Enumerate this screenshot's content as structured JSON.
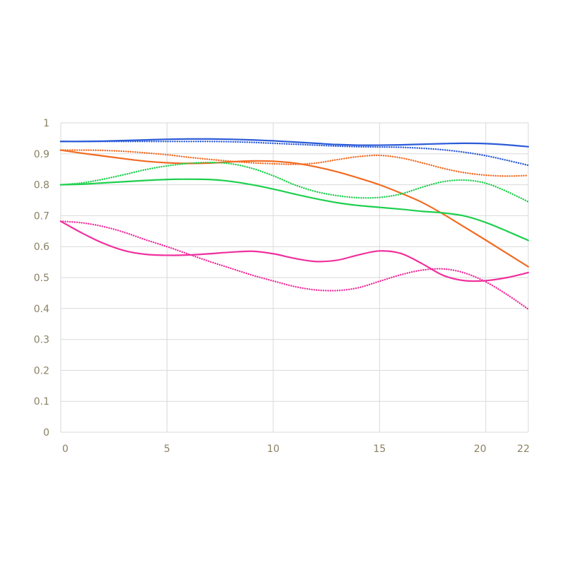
{
  "chart_data": {
    "type": "line",
    "title": "",
    "xlabel": "",
    "ylabel": "",
    "xlim": [
      0,
      22
    ],
    "ylim": [
      0,
      1
    ],
    "grid": true,
    "x_ticks": [
      0,
      5,
      10,
      15,
      20,
      22
    ],
    "x_tick_labels": [
      "0",
      "5",
      "10",
      "15",
      "20",
      "22"
    ],
    "y_ticks": [
      0,
      0.1,
      0.2,
      0.3,
      0.4,
      0.5,
      0.6,
      0.7,
      0.8,
      0.9,
      1
    ],
    "y_tick_labels": [
      "0",
      "0.1",
      "0.2",
      "0.3",
      "0.4",
      "0.5",
      "0.6",
      "0.7",
      "0.8",
      "0.9",
      "1"
    ],
    "colors": {
      "grid": "#d9d9d9",
      "tick_text": "#8a8163",
      "blue": "#2b5bd7",
      "orange": "#f26a21",
      "green": "#1fcf4e",
      "magenta": "#f0309e"
    },
    "series": [
      {
        "color": "#2b5bd7",
        "style": "solid",
        "x": [
          0,
          1,
          2,
          3,
          4,
          5,
          6,
          7,
          8,
          9,
          10,
          11,
          12,
          13,
          14,
          15,
          16,
          17,
          18,
          19,
          20,
          21,
          22
        ],
        "y": [
          0.94,
          0.94,
          0.941,
          0.943,
          0.945,
          0.947,
          0.948,
          0.948,
          0.947,
          0.945,
          0.942,
          0.938,
          0.934,
          0.93,
          0.928,
          0.928,
          0.929,
          0.931,
          0.933,
          0.934,
          0.933,
          0.929,
          0.923
        ]
      },
      {
        "color": "#2b5bd7",
        "style": "dotted",
        "x": [
          0,
          1,
          2,
          3,
          4,
          5,
          6,
          7,
          8,
          9,
          10,
          11,
          12,
          13,
          14,
          15,
          16,
          17,
          18,
          19,
          20,
          21,
          22
        ],
        "y": [
          0.94,
          0.94,
          0.94,
          0.94,
          0.94,
          0.94,
          0.94,
          0.94,
          0.939,
          0.937,
          0.934,
          0.931,
          0.928,
          0.925,
          0.923,
          0.922,
          0.921,
          0.918,
          0.913,
          0.905,
          0.894,
          0.879,
          0.863
        ]
      },
      {
        "color": "#f26a21",
        "style": "solid",
        "x": [
          0,
          1,
          2,
          3,
          4,
          5,
          6,
          7,
          8,
          9,
          10,
          11,
          12,
          13,
          14,
          15,
          16,
          17,
          18,
          19,
          20,
          21,
          22
        ],
        "y": [
          0.912,
          0.902,
          0.893,
          0.884,
          0.876,
          0.871,
          0.869,
          0.87,
          0.874,
          0.877,
          0.876,
          0.87,
          0.858,
          0.842,
          0.822,
          0.8,
          0.773,
          0.743,
          0.705,
          0.663,
          0.621,
          0.578,
          0.535
        ]
      },
      {
        "color": "#f26a21",
        "style": "dotted",
        "x": [
          0,
          1,
          2,
          3,
          4,
          5,
          6,
          7,
          8,
          9,
          10,
          11,
          12,
          13,
          14,
          15,
          16,
          17,
          18,
          19,
          20,
          21,
          22
        ],
        "y": [
          0.912,
          0.912,
          0.911,
          0.908,
          0.903,
          0.897,
          0.889,
          0.882,
          0.876,
          0.871,
          0.868,
          0.866,
          0.87,
          0.881,
          0.891,
          0.895,
          0.887,
          0.871,
          0.853,
          0.839,
          0.831,
          0.828,
          0.83
        ]
      },
      {
        "color": "#1fcf4e",
        "style": "solid",
        "x": [
          0,
          1,
          2,
          3,
          4,
          5,
          6,
          7,
          8,
          9,
          10,
          11,
          12,
          13,
          14,
          15,
          16,
          17,
          18,
          19,
          20,
          21,
          22
        ],
        "y": [
          0.8,
          0.802,
          0.806,
          0.81,
          0.814,
          0.817,
          0.818,
          0.817,
          0.811,
          0.8,
          0.786,
          0.77,
          0.755,
          0.742,
          0.733,
          0.727,
          0.721,
          0.714,
          0.709,
          0.699,
          0.678,
          0.65,
          0.62
        ]
      },
      {
        "color": "#1fcf4e",
        "style": "dotted",
        "x": [
          0,
          1,
          2,
          3,
          4,
          5,
          6,
          7,
          8,
          9,
          10,
          11,
          12,
          13,
          14,
          15,
          16,
          17,
          18,
          19,
          20,
          21,
          22
        ],
        "y": [
          0.8,
          0.806,
          0.818,
          0.833,
          0.849,
          0.861,
          0.869,
          0.872,
          0.868,
          0.853,
          0.829,
          0.8,
          0.778,
          0.765,
          0.758,
          0.759,
          0.77,
          0.792,
          0.81,
          0.815,
          0.805,
          0.778,
          0.745
        ]
      },
      {
        "color": "#f0309e",
        "style": "solid",
        "x": [
          0,
          1,
          2,
          3,
          4,
          5,
          6,
          7,
          8,
          9,
          10,
          11,
          12,
          13,
          14,
          15,
          16,
          17,
          18,
          19,
          20,
          21,
          22
        ],
        "y": [
          0.682,
          0.644,
          0.611,
          0.587,
          0.575,
          0.572,
          0.573,
          0.577,
          0.582,
          0.585,
          0.577,
          0.562,
          0.552,
          0.556,
          0.573,
          0.586,
          0.578,
          0.545,
          0.507,
          0.49,
          0.49,
          0.5,
          0.516
        ]
      },
      {
        "color": "#f0309e",
        "style": "dotted",
        "x": [
          0,
          1,
          2,
          3,
          4,
          5,
          6,
          7,
          8,
          9,
          10,
          11,
          12,
          13,
          14,
          15,
          16,
          17,
          18,
          19,
          20,
          21,
          22
        ],
        "y": [
          0.682,
          0.677,
          0.665,
          0.646,
          0.622,
          0.6,
          0.576,
          0.552,
          0.53,
          0.508,
          0.489,
          0.471,
          0.46,
          0.458,
          0.467,
          0.488,
          0.509,
          0.524,
          0.528,
          0.515,
          0.486,
          0.445,
          0.398
        ]
      }
    ]
  }
}
